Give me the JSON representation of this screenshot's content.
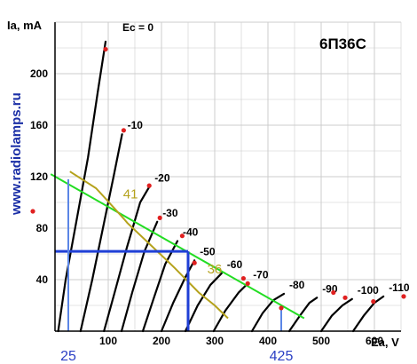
{
  "chart_data": {
    "type": "line",
    "tube": "6П36С",
    "side_text": "www.radiolamps.ru",
    "xlabel": "Ea, V",
    "ylabel": "Ia, mA",
    "xlim": [
      0,
      650
    ],
    "ylim": [
      0,
      240
    ],
    "x_ticks": [
      "100",
      "200",
      "300",
      "400",
      "500",
      "600"
    ],
    "y_ticks": [
      "40",
      "80",
      "120",
      "160",
      "200"
    ],
    "grid": true,
    "series": [
      {
        "name": "Ec = 0",
        "points": [
          [
            6,
            0
          ],
          [
            20,
            40
          ],
          [
            40,
            85
          ],
          [
            62,
            135
          ],
          [
            80,
            185
          ],
          [
            95,
            225
          ]
        ]
      },
      {
        "name": "-10",
        "points": [
          [
            48,
            0
          ],
          [
            70,
            40
          ],
          [
            90,
            80
          ],
          [
            110,
            120
          ],
          [
            126,
            153
          ]
        ]
      },
      {
        "name": "-20",
        "points": [
          [
            92,
            0
          ],
          [
            112,
            30
          ],
          [
            135,
            65
          ],
          [
            160,
            100
          ],
          [
            177,
            112
          ]
        ]
      },
      {
        "name": "-30",
        "points": [
          [
            125,
            0
          ],
          [
            145,
            30
          ],
          [
            168,
            62
          ],
          [
            192,
            85
          ]
        ]
      },
      {
        "name": "-40",
        "points": [
          [
            165,
            0
          ],
          [
            185,
            25
          ],
          [
            207,
            52
          ],
          [
            230,
            70
          ]
        ]
      },
      {
        "name": "-50",
        "points": [
          [
            200,
            0
          ],
          [
            222,
            22
          ],
          [
            245,
            42
          ],
          [
            262,
            55
          ]
        ]
      },
      {
        "name": "-60",
        "points": [
          [
            245,
            0
          ],
          [
            268,
            20
          ],
          [
            292,
            36
          ],
          [
            313,
            45
          ]
        ]
      },
      {
        "name": "-70",
        "points": [
          [
            298,
            0
          ],
          [
            320,
            16
          ],
          [
            345,
            30
          ],
          [
            362,
            37
          ]
        ]
      },
      {
        "name": "-80",
        "points": [
          [
            370,
            0
          ],
          [
            390,
            14
          ],
          [
            410,
            24
          ],
          [
            430,
            29
          ]
        ]
      },
      {
        "name": "-90",
        "points": [
          [
            440,
            0
          ],
          [
            460,
            12
          ],
          [
            478,
            22
          ],
          [
            492,
            26
          ]
        ]
      },
      {
        "name": "-100",
        "points": [
          [
            500,
            0
          ],
          [
            520,
            12
          ],
          [
            540,
            20
          ],
          [
            558,
            25
          ]
        ]
      },
      {
        "name": "-110",
        "points": [
          [
            560,
            0
          ],
          [
            580,
            12
          ],
          [
            600,
            22
          ],
          [
            617,
            27
          ]
        ]
      }
    ],
    "red_points": [
      [
        95,
        219
      ],
      [
        129,
        156
      ],
      [
        177,
        113
      ],
      [
        197,
        88
      ],
      [
        239,
        74
      ],
      [
        262,
        53
      ],
      [
        354,
        41
      ],
      [
        362,
        37
      ],
      [
        425,
        18
      ],
      [
        523,
        30
      ],
      [
        545,
        26
      ],
      [
        598,
        23
      ],
      [
        655,
        27
      ]
    ],
    "load_lines": [
      {
        "name": "green",
        "color": "#22dd22",
        "points": [
          [
            -8,
            122
          ],
          [
            468,
            10
          ]
        ]
      },
      {
        "name": "brown",
        "color": "#b5a21c",
        "points": [
          [
            28,
            124
          ],
          [
            77,
            111
          ],
          [
            95,
            103
          ],
          [
            130,
            87
          ],
          [
            136,
            84
          ],
          [
            205,
            57
          ],
          [
            225,
            49
          ],
          [
            270,
            30
          ],
          [
            300,
            20
          ],
          [
            325,
            10
          ]
        ]
      }
    ],
    "annotations": [
      {
        "text": "41",
        "x": 128,
        "y": 103
      },
      {
        "text": "36",
        "x": 286,
        "y": 45
      }
    ],
    "operating": {
      "x_markers": [
        "25",
        "425"
      ],
      "x_values": [
        25,
        425
      ],
      "i_level": 62,
      "e_point": 250,
      "color": "#1f3fd6"
    },
    "colors": {
      "curve": "#000000",
      "red": "#e02020",
      "blue": "#1f3fd6",
      "green": "#22dd22",
      "brown": "#b5a21c"
    }
  }
}
